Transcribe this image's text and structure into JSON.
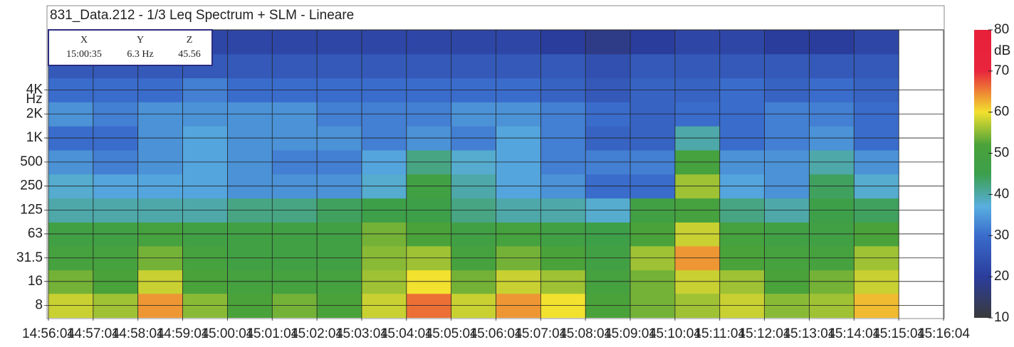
{
  "chart_data": {
    "type": "heatmap",
    "title": "831_Data.212 - 1/3 Leq Spectrum + SLM - Lineare",
    "cursor": {
      "headers": [
        "X",
        "Y",
        "Z"
      ],
      "values": [
        "15:00:35",
        "6.3 Hz",
        "45.56"
      ]
    },
    "xticks": [
      "14:56:04",
      "14:57:04",
      "14:58:04",
      "14:59:04",
      "15:00:04",
      "15:01:04",
      "15:02:04",
      "15:03:04",
      "15:04:04",
      "15:05:04",
      "15:06:04",
      "15:07:04",
      "15:08:04",
      "15:09:04",
      "15:10:04",
      "15:11:04",
      "15:12:04",
      "15:13:04",
      "15:14:04",
      "15:15:04",
      "15:16:04"
    ],
    "ylabel": "Hz",
    "log_y": true,
    "ylim": [
      5.6,
      22600
    ],
    "yticks": [
      8,
      16,
      31.5,
      63,
      125,
      250,
      500,
      {
        "value": 1000,
        "label": "1K"
      },
      {
        "value": 2000,
        "label": "2K"
      },
      {
        "value": 4000,
        "label": "4K"
      }
    ],
    "grid": true,
    "y_bands": [
      8,
      16,
      31.5,
      63,
      125,
      250,
      500,
      1000,
      2000,
      4000,
      8000,
      16000
    ],
    "z": [
      [
        58,
        56,
        64,
        55,
        52,
        54,
        52,
        58,
        66,
        58,
        64,
        60,
        52,
        54,
        56,
        58,
        55,
        56,
        62
      ],
      [
        54,
        52,
        58,
        52,
        50,
        50,
        50,
        56,
        60,
        54,
        58,
        56,
        50,
        54,
        58,
        56,
        52,
        54,
        58
      ],
      [
        50,
        50,
        54,
        50,
        48,
        48,
        48,
        55,
        56,
        50,
        54,
        52,
        48,
        56,
        64,
        52,
        50,
        50,
        56
      ],
      [
        48,
        48,
        50,
        48,
        48,
        48,
        48,
        54,
        52,
        48,
        50,
        48,
        46,
        52,
        58,
        50,
        48,
        48,
        52
      ],
      [
        40,
        40,
        40,
        40,
        42,
        42,
        44,
        46,
        46,
        42,
        40,
        40,
        38,
        48,
        50,
        42,
        40,
        46,
        44
      ],
      [
        38,
        36,
        36,
        36,
        34,
        34,
        34,
        38,
        48,
        40,
        36,
        34,
        30,
        30,
        56,
        36,
        34,
        44,
        38
      ],
      [
        34,
        32,
        34,
        36,
        34,
        32,
        32,
        36,
        42,
        38,
        36,
        32,
        32,
        32,
        50,
        34,
        34,
        40,
        34
      ],
      [
        30,
        30,
        34,
        36,
        34,
        34,
        34,
        32,
        34,
        32,
        36,
        32,
        28,
        28,
        40,
        30,
        32,
        34,
        30
      ],
      [
        34,
        32,
        34,
        34,
        34,
        34,
        32,
        32,
        32,
        34,
        34,
        32,
        30,
        28,
        30,
        30,
        32,
        32,
        30
      ],
      [
        30,
        30,
        30,
        32,
        30,
        30,
        30,
        30,
        30,
        30,
        30,
        28,
        26,
        28,
        28,
        30,
        28,
        30,
        28
      ],
      [
        26,
        26,
        26,
        26,
        26,
        26,
        26,
        26,
        26,
        26,
        26,
        26,
        24,
        26,
        26,
        26,
        26,
        26,
        26
      ],
      [
        22,
        22,
        22,
        22,
        22,
        22,
        22,
        22,
        22,
        22,
        22,
        20,
        18,
        20,
        22,
        22,
        20,
        20,
        22
      ]
    ],
    "colorbar_label": "dB",
    "zlim": [
      10,
      80
    ],
    "zticks": [
      10,
      20,
      30,
      40,
      50,
      60,
      70,
      80
    ],
    "colormap": [
      {
        "value": 10,
        "color": "#3a3a3a"
      },
      {
        "value": 20,
        "color": "#2b3d9c"
      },
      {
        "value": 30,
        "color": "#3a6ccc"
      },
      {
        "value": 37,
        "color": "#58aee0"
      },
      {
        "value": 45,
        "color": "#3c9f4c"
      },
      {
        "value": 52,
        "color": "#4aa23a"
      },
      {
        "value": 60,
        "color": "#f2e12e"
      },
      {
        "value": 70,
        "color": "#e8253c"
      },
      {
        "value": 80,
        "color": "#e8203a"
      }
    ]
  }
}
